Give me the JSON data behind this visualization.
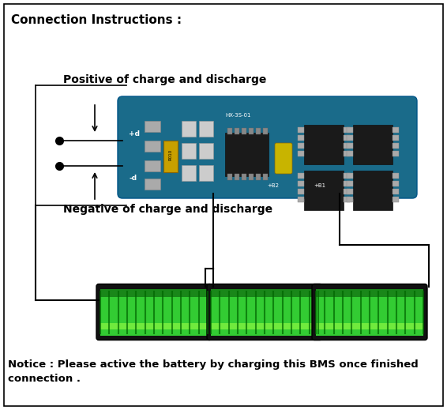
{
  "title": "Connection Instructions :",
  "title_fontsize": 11,
  "title_fontweight": "bold",
  "notice_text": "Notice : Please active the battery by charging this BMS once finished\nconnection .",
  "notice_fontsize": 9.5,
  "notice_fontweight": "bold",
  "positive_label": "Positive of charge and discharge",
  "negative_label": "Negative of charge and discharge",
  "label_fontsize": 10,
  "label_fontweight": "bold",
  "bg_color": "#ffffff",
  "border_color": "#000000",
  "board_color": "#1a6b8a",
  "fig_width": 5.66,
  "fig_height": 5.19,
  "dpi": 100
}
